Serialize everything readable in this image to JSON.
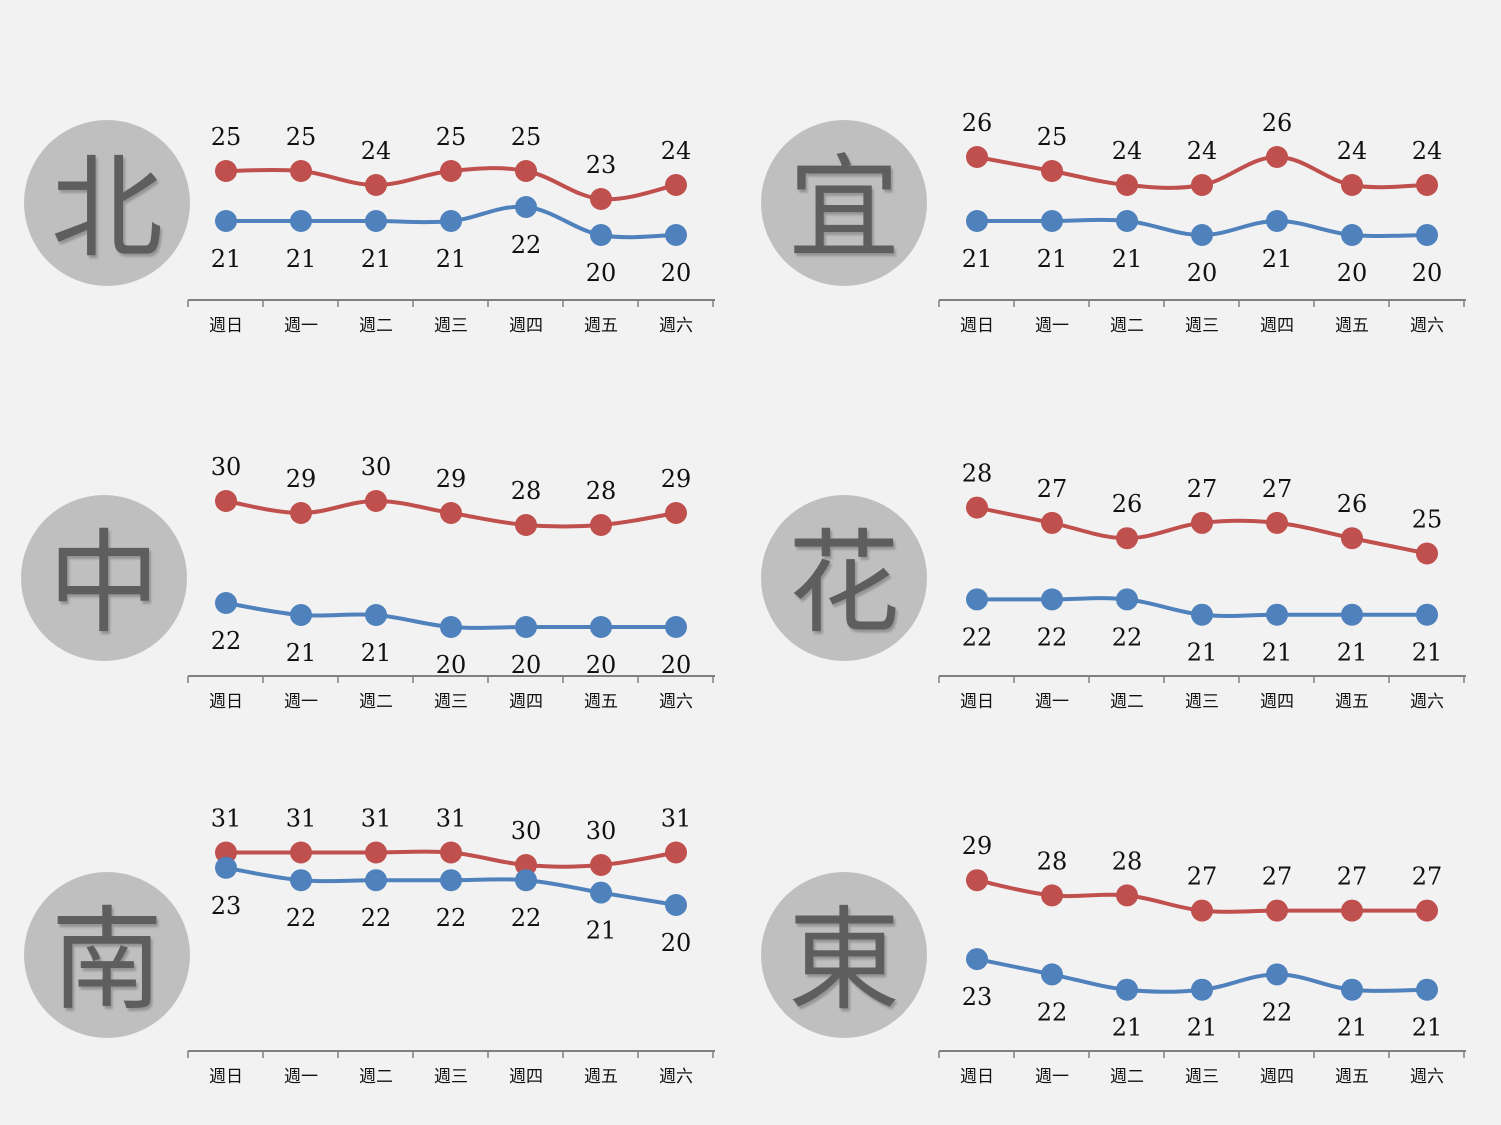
{
  "colors": {
    "high": "#c0504d",
    "low": "#4f81bd",
    "axis": "#808080",
    "circle": "#bfbfbf",
    "glyph": "#5e5e5e",
    "background": "#f2f2f2"
  },
  "chart_data": [
    {
      "type": "line",
      "region_label": "北",
      "categories": [
        "週日",
        "週一",
        "週二",
        "週三",
        "週四",
        "週五",
        "週六"
      ],
      "series": [
        {
          "values": [
            25,
            25,
            24,
            25,
            25,
            23,
            24
          ]
        },
        {
          "values": [
            21,
            21,
            21,
            21,
            22,
            20,
            20
          ]
        }
      ]
    },
    {
      "type": "line",
      "region_label": "宜",
      "categories": [
        "週日",
        "週一",
        "週二",
        "週三",
        "週四",
        "週五",
        "週六"
      ],
      "series": [
        {
          "values": [
            26,
            25,
            24,
            24,
            26,
            24,
            24
          ]
        },
        {
          "values": [
            21,
            21,
            21,
            20,
            21,
            20,
            20
          ]
        }
      ]
    },
    {
      "type": "line",
      "region_label": "中",
      "categories": [
        "週日",
        "週一",
        "週二",
        "週三",
        "週四",
        "週五",
        "週六"
      ],
      "series": [
        {
          "values": [
            30,
            29,
            30,
            29,
            28,
            28,
            29
          ]
        },
        {
          "values": [
            22,
            21,
            21,
            20,
            20,
            20,
            20
          ]
        }
      ]
    },
    {
      "type": "line",
      "region_label": "花",
      "categories": [
        "週日",
        "週一",
        "週二",
        "週三",
        "週四",
        "週五",
        "週六"
      ],
      "series": [
        {
          "values": [
            28,
            27,
            26,
            27,
            27,
            26,
            25
          ]
        },
        {
          "values": [
            22,
            22,
            22,
            21,
            21,
            21,
            21
          ]
        }
      ]
    },
    {
      "type": "line",
      "region_label": "南",
      "categories": [
        "週日",
        "週一",
        "週二",
        "週三",
        "週四",
        "週五",
        "週六"
      ],
      "series": [
        {
          "values": [
            31,
            31,
            31,
            31,
            30,
            30,
            31
          ]
        },
        {
          "values": [
            23,
            22,
            22,
            22,
            22,
            21,
            20
          ]
        }
      ]
    },
    {
      "type": "line",
      "region_label": "東",
      "categories": [
        "週日",
        "週一",
        "週二",
        "週三",
        "週四",
        "週五",
        "週六"
      ],
      "series": [
        {
          "values": [
            29,
            28,
            28,
            27,
            27,
            27,
            27
          ]
        },
        {
          "values": [
            23,
            22,
            21,
            21,
            22,
            21,
            21
          ]
        }
      ]
    }
  ]
}
